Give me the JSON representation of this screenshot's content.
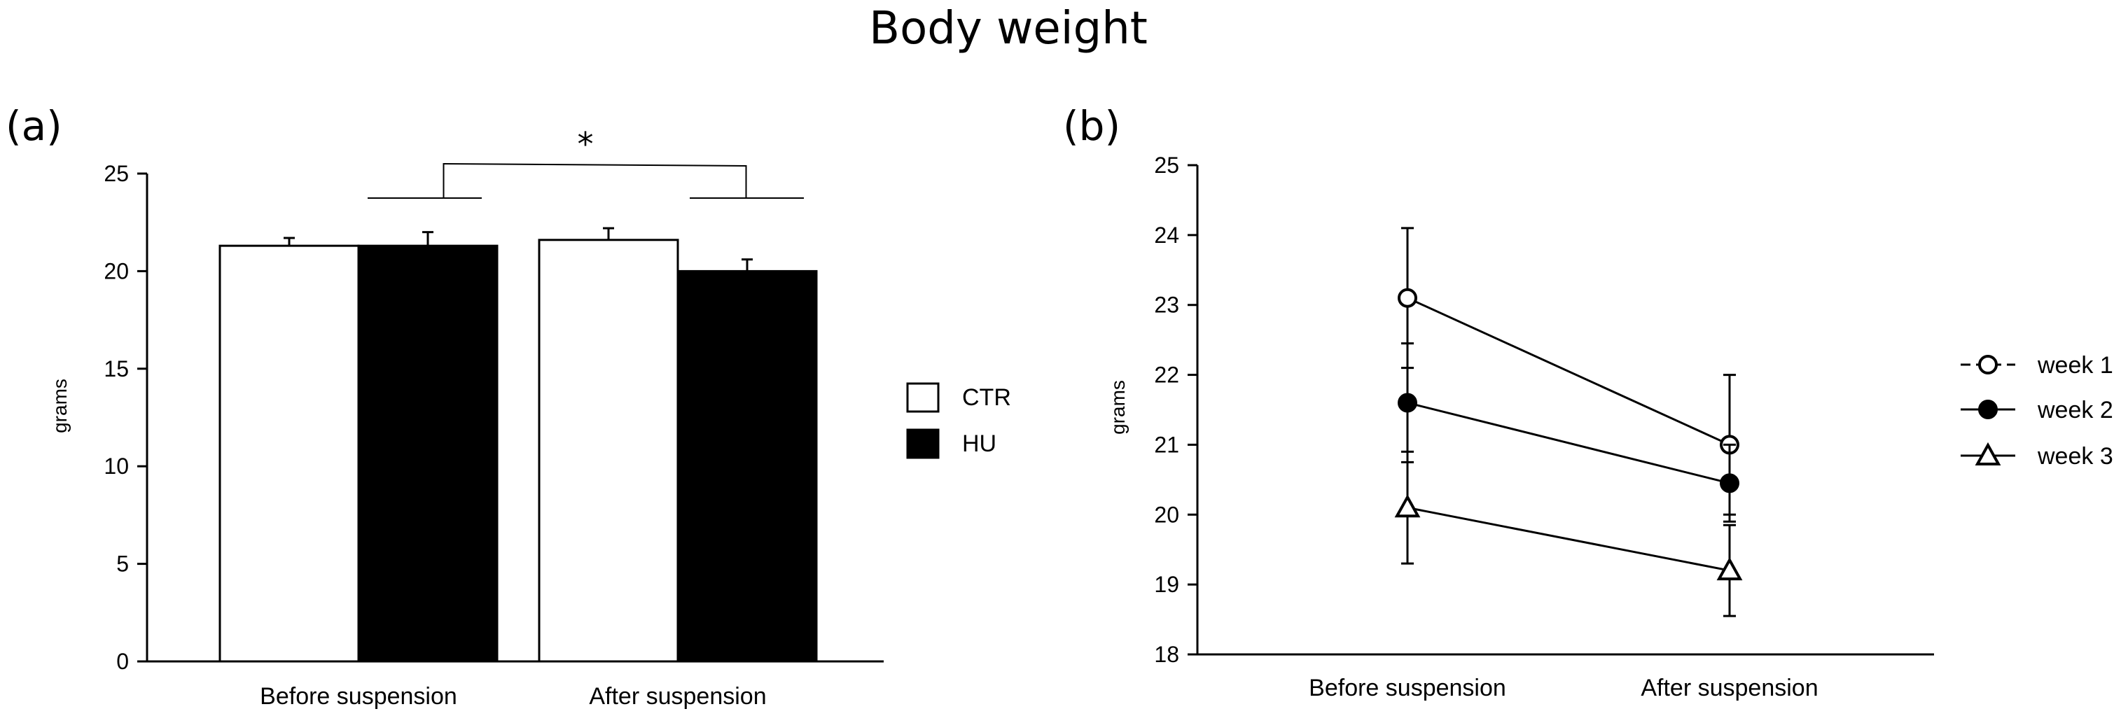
{
  "figure_title": "Body weight",
  "chart_data": [
    {
      "panel": "(a)",
      "type": "bar",
      "title": "",
      "xlabel": "",
      "ylabel": "grams",
      "ylim": [
        0,
        25
      ],
      "yticks": [
        0,
        5,
        10,
        15,
        20,
        25
      ],
      "categories": [
        "Before suspension",
        "After suspension"
      ],
      "series": [
        {
          "name": "CTR",
          "fill": "#ffffff",
          "values": [
            21.3,
            21.6
          ],
          "errors": [
            0.4,
            0.6
          ]
        },
        {
          "name": "HU",
          "fill": "#000000",
          "values": [
            21.3,
            20.0
          ],
          "errors": [
            0.7,
            0.6
          ]
        }
      ],
      "significance": {
        "label": "*",
        "between": "HU: Before suspension vs After suspension"
      },
      "legend": "right"
    },
    {
      "panel": "(b)",
      "type": "line",
      "title": "",
      "xlabel": "",
      "ylabel": "grams",
      "ylim": [
        18,
        25
      ],
      "yticks": [
        18,
        19,
        20,
        21,
        22,
        23,
        24,
        25
      ],
      "categories": [
        "Before suspension",
        "After suspension"
      ],
      "series": [
        {
          "name": "week 1",
          "marker": "open-circle",
          "values": [
            23.1,
            21.0
          ],
          "errors": [
            1.0,
            1.0
          ]
        },
        {
          "name": "week 2",
          "marker": "filled-circle",
          "values": [
            21.6,
            20.45
          ],
          "errors": [
            0.85,
            0.55
          ]
        },
        {
          "name": "week 3",
          "marker": "open-triangle",
          "values": [
            20.1,
            19.2
          ],
          "errors": [
            0.8,
            0.65
          ]
        }
      ],
      "legend": "right"
    }
  ]
}
